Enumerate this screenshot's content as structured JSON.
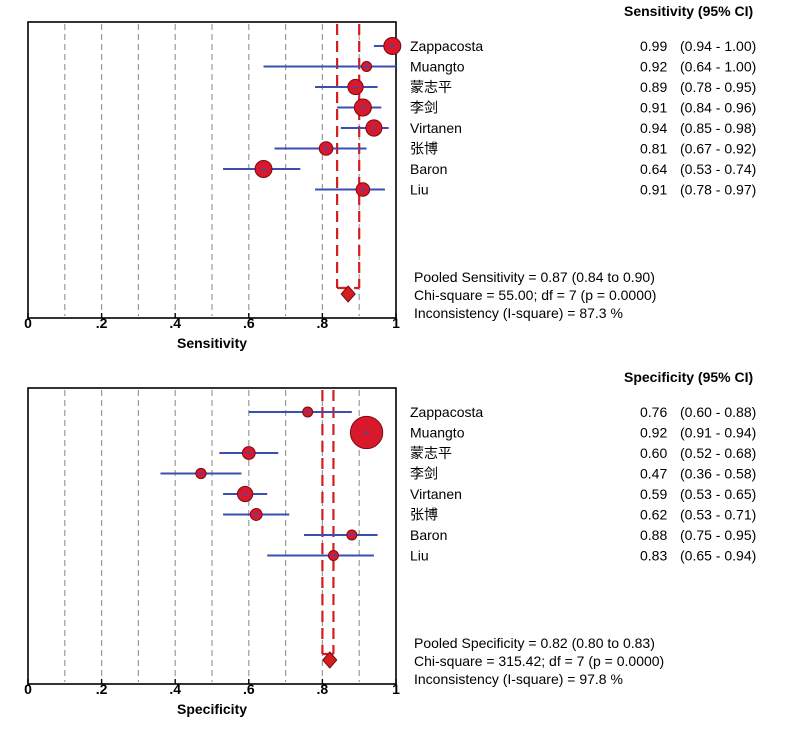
{
  "chart_data": [
    {
      "type": "forest",
      "title": "Sensitivity (95% CI)",
      "xlabel": "Sensitivity",
      "xlim": [
        0,
        1
      ],
      "xticks": [
        0,
        0.2,
        0.4,
        0.6,
        0.8,
        1
      ],
      "xtick_labels": [
        "0",
        ".2",
        ".4",
        ".6",
        ".8",
        "1"
      ],
      "grid": "vertical dashed at 0.1 steps",
      "studies": [
        {
          "name": "Zappacosta",
          "estimate": 0.99,
          "lower": 0.94,
          "upper": 1.0,
          "value_text": "0.99",
          "ci_text": "(0.94 - 1.00)",
          "weight": 1.0
        },
        {
          "name": "Muangto",
          "estimate": 0.92,
          "lower": 0.64,
          "upper": 1.0,
          "value_text": "0.92",
          "ci_text": "(0.64 - 1.00)",
          "weight": 0.55
        },
        {
          "name": "蒙志平",
          "estimate": 0.89,
          "lower": 0.78,
          "upper": 0.95,
          "value_text": "0.89",
          "ci_text": "(0.78 - 0.95)",
          "weight": 0.9
        },
        {
          "name": "李剑",
          "estimate": 0.91,
          "lower": 0.84,
          "upper": 0.96,
          "value_text": "0.91",
          "ci_text": "(0.84 - 0.96)",
          "weight": 1.0
        },
        {
          "name": "Virtanen",
          "estimate": 0.94,
          "lower": 0.85,
          "upper": 0.98,
          "value_text": "0.94",
          "ci_text": "(0.85 - 0.98)",
          "weight": 0.95
        },
        {
          "name": "张博",
          "estimate": 0.81,
          "lower": 0.67,
          "upper": 0.92,
          "value_text": "0.81",
          "ci_text": "(0.67 - 0.92)",
          "weight": 0.8
        },
        {
          "name": "Baron",
          "estimate": 0.64,
          "lower": 0.53,
          "upper": 0.74,
          "value_text": "0.64",
          "ci_text": "(0.53 - 0.74)",
          "weight": 1.0
        },
        {
          "name": "Liu",
          "estimate": 0.91,
          "lower": 0.78,
          "upper": 0.97,
          "value_text": "0.91",
          "ci_text": "(0.78 - 0.97)",
          "weight": 0.8
        }
      ],
      "pooled": {
        "estimate": 0.87,
        "lower": 0.84,
        "upper": 0.9
      },
      "summary_lines": [
        "Pooled Sensitivity = 0.87 (0.84 to 0.90)",
        "Chi-square = 55.00; df = 7 (p = 0.0000)",
        "Inconsistency (I-square) = 87.3 %"
      ]
    },
    {
      "type": "forest",
      "title": "Specificity (95% CI)",
      "xlabel": "Specificity",
      "xlim": [
        0,
        1
      ],
      "xticks": [
        0,
        0.2,
        0.4,
        0.6,
        0.8,
        1
      ],
      "xtick_labels": [
        "0",
        ".2",
        ".4",
        ".6",
        ".8",
        "1"
      ],
      "grid": "vertical dashed at 0.1 steps",
      "studies": [
        {
          "name": "Zappacosta",
          "estimate": 0.76,
          "lower": 0.6,
          "upper": 0.88,
          "value_text": "0.76",
          "ci_text": "(0.60 - 0.88)",
          "weight": 0.45
        },
        {
          "name": "Muangto",
          "estimate": 0.92,
          "lower": 0.91,
          "upper": 0.94,
          "value_text": "0.92",
          "ci_text": "(0.91 - 0.94)",
          "weight": 1.9
        },
        {
          "name": "蒙志平",
          "estimate": 0.6,
          "lower": 0.52,
          "upper": 0.68,
          "value_text": "0.60",
          "ci_text": "(0.52 - 0.68)",
          "weight": 0.75
        },
        {
          "name": "李剑",
          "estimate": 0.47,
          "lower": 0.36,
          "upper": 0.58,
          "value_text": "0.47",
          "ci_text": "(0.36 - 0.58)",
          "weight": 0.6
        },
        {
          "name": "Virtanen",
          "estimate": 0.59,
          "lower": 0.53,
          "upper": 0.65,
          "value_text": "0.59",
          "ci_text": "(0.53 - 0.65)",
          "weight": 0.9
        },
        {
          "name": "张博",
          "estimate": 0.62,
          "lower": 0.53,
          "upper": 0.71,
          "value_text": "0.62",
          "ci_text": "(0.53 - 0.71)",
          "weight": 0.7
        },
        {
          "name": "Baron",
          "estimate": 0.88,
          "lower": 0.75,
          "upper": 0.95,
          "value_text": "0.88",
          "ci_text": "(0.75 - 0.95)",
          "weight": 0.5
        },
        {
          "name": "Liu",
          "estimate": 0.83,
          "lower": 0.65,
          "upper": 0.94,
          "value_text": "0.83",
          "ci_text": "(0.65 - 0.94)",
          "weight": 0.35
        }
      ],
      "pooled": {
        "estimate": 0.82,
        "lower": 0.8,
        "upper": 0.83
      },
      "summary_lines": [
        "Pooled Specificity = 0.82 (0.80 to 0.83)",
        "Chi-square = 315.42; df = 7 (p = 0.0000)",
        "Inconsistency (I-square) = 97.8 %"
      ]
    }
  ],
  "colors": {
    "ci_line": "#3b4fb0",
    "point_fill": "#d7192b",
    "pooled": "#d21e1e",
    "grid": "#9a9a9a"
  }
}
